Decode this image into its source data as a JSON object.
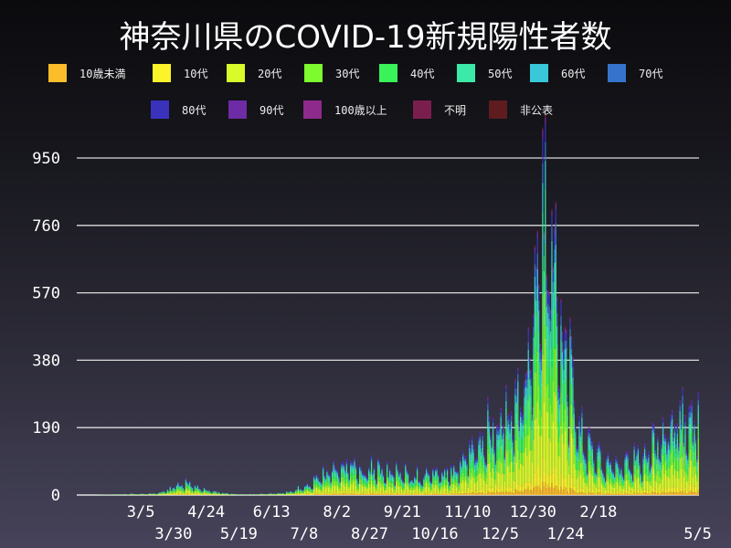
{
  "chart_data": {
    "type": "bar",
    "stacked": true,
    "title": "神奈川県のCOVID-19新規陽性者数",
    "xlabel": "",
    "ylabel": "",
    "ylim": [
      0,
      1000
    ],
    "yticks": [
      0,
      190,
      380,
      570,
      760,
      950
    ],
    "xticks": [
      "3/5",
      "3/30",
      "4/24",
      "5/19",
      "6/13",
      "7/8",
      "8/2",
      "8/27",
      "9/21",
      "10/16",
      "11/10",
      "12/5",
      "12/30",
      "1/24",
      "2/18",
      "5/5"
    ],
    "x_start": "2020-01-16",
    "x_end": "2021-05-05",
    "x_resolution": "weekly average of daily new cases, week starting from x_start",
    "weekly_totals": [
      0,
      0,
      0,
      1,
      2,
      2,
      3,
      3,
      4,
      6,
      15,
      30,
      35,
      25,
      15,
      10,
      6,
      3,
      2,
      2,
      3,
      4,
      5,
      8,
      15,
      25,
      40,
      55,
      70,
      90,
      85,
      75,
      70,
      70,
      65,
      60,
      55,
      55,
      55,
      60,
      60,
      65,
      80,
      120,
      150,
      170,
      190,
      220,
      250,
      350,
      480,
      800,
      700,
      450,
      300,
      180,
      130,
      100,
      90,
      90,
      95,
      100,
      110,
      140,
      170,
      200,
      210,
      200
    ],
    "grid": true,
    "legend_placement": "top",
    "series": [
      {
        "name": "10歳未満",
        "color": "#fbbd2a",
        "share": 0.04
      },
      {
        "name": "10代",
        "color": "#fdf32a",
        "share": 0.07
      },
      {
        "name": "20代",
        "color": "#d9fb2a",
        "share": 0.24
      },
      {
        "name": "30代",
        "color": "#7dfb2e",
        "share": 0.16
      },
      {
        "name": "40代",
        "color": "#38f458",
        "share": 0.14
      },
      {
        "name": "50代",
        "color": "#3beaa8",
        "share": 0.13
      },
      {
        "name": "60代",
        "color": "#38c8da",
        "share": 0.08
      },
      {
        "name": "70代",
        "color": "#3573cc",
        "share": 0.06
      },
      {
        "name": "80代",
        "color": "#3a32bd",
        "share": 0.05
      },
      {
        "name": "90代",
        "color": "#6e2ba6",
        "share": 0.02
      },
      {
        "name": "100歳以上",
        "color": "#8e2a8c",
        "share": 0.001
      },
      {
        "name": "不明",
        "color": "#7a1f4d",
        "share": 0.005
      },
      {
        "name": "非公表",
        "color": "#5e1c1e",
        "share": 0.004
      }
    ]
  }
}
